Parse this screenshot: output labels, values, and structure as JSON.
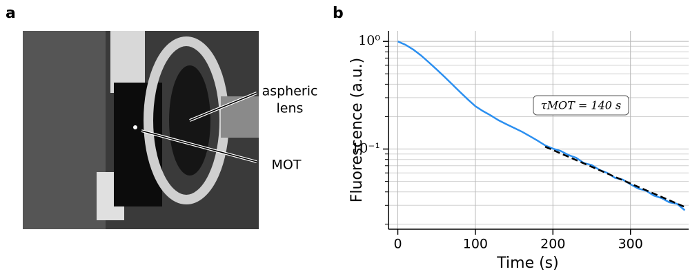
{
  "photo": {
    "panel_label": "a",
    "lens_label": [
      "aspheric",
      "lens"
    ],
    "mot_label": "MOT"
  },
  "chart_data": {
    "type": "line",
    "panel_label": "b",
    "xlabel": "Time (s)",
    "ylabel": "Fluorescence (a.u.)",
    "annotation": "τMOT = 140 s",
    "yscale": "log",
    "grid": true,
    "xlim": [
      -12,
      375
    ],
    "ylim": [
      0.018,
      1.25
    ],
    "xticks": [
      0,
      100,
      200,
      300
    ],
    "yticks": [
      {
        "value": 1,
        "label": "10⁰"
      },
      {
        "value": 0.1,
        "label": "10⁻¹"
      }
    ],
    "yminorticks": [
      0.02,
      0.03,
      0.04,
      0.05,
      0.06,
      0.07,
      0.08,
      0.09,
      0.2,
      0.3,
      0.4,
      0.5,
      0.6,
      0.7,
      0.8,
      0.9
    ],
    "series": [
      {
        "color": "#2b8ff0",
        "x": [
          0,
          10,
          20,
          30,
          40,
          50,
          60,
          70,
          80,
          90,
          100,
          110,
          120,
          130,
          140,
          150,
          160,
          170,
          180,
          190,
          200,
          210,
          220,
          230,
          240,
          250,
          260,
          270,
          280,
          290,
          300,
          310,
          320,
          330,
          340,
          350,
          360,
          370
        ],
        "values": [
          1.0,
          0.93,
          0.84,
          0.74,
          0.64,
          0.55,
          0.47,
          0.4,
          0.34,
          0.29,
          0.25,
          0.225,
          0.205,
          0.185,
          0.17,
          0.157,
          0.145,
          0.132,
          0.12,
          0.108,
          0.101,
          0.096,
          0.088,
          0.083,
          0.074,
          0.071,
          0.064,
          0.06,
          0.054,
          0.052,
          0.047,
          0.043,
          0.041,
          0.037,
          0.035,
          0.032,
          0.031,
          0.027
        ]
      },
      {
        "color": "#000000",
        "dashed": true,
        "x": [
          190,
          372
        ],
        "values": [
          0.105,
          0.0286
        ]
      }
    ]
  }
}
